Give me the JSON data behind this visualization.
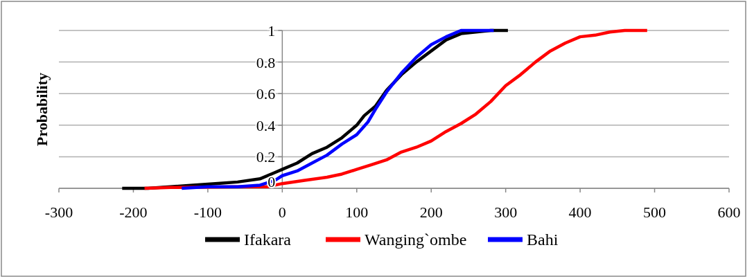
{
  "chart_data": {
    "type": "line",
    "ylabel": "Probability",
    "xlim": [
      -300,
      600
    ],
    "xticks": [
      -300,
      -200,
      -100,
      0,
      100,
      200,
      300,
      400,
      500,
      600
    ],
    "ylim": [
      0,
      1
    ],
    "yticks": [
      0,
      0.2,
      0.4,
      0.6,
      0.8,
      1
    ],
    "grid": "y",
    "legend": "bottom",
    "line_style": "solid",
    "series": [
      {
        "name": "Ifakara",
        "color": "#000000",
        "x": [
          -215,
          -180,
          -120,
          -90,
          -60,
          -30,
          -10,
          0,
          20,
          40,
          60,
          80,
          100,
          110,
          125,
          140,
          160,
          180,
          200,
          220,
          240,
          260,
          280,
          303
        ],
        "values": [
          0,
          0,
          0.02,
          0.03,
          0.04,
          0.06,
          0.1,
          0.12,
          0.16,
          0.22,
          0.26,
          0.32,
          0.4,
          0.46,
          0.52,
          0.62,
          0.72,
          0.8,
          0.87,
          0.94,
          0.98,
          0.99,
          1,
          1
        ]
      },
      {
        "name": "Wanging`ombe",
        "color": "#ff0000",
        "x": [
          -185,
          -150,
          -50,
          -20,
          0,
          30,
          60,
          80,
          100,
          120,
          140,
          160,
          180,
          200,
          220,
          240,
          260,
          280,
          300,
          320,
          340,
          360,
          380,
          400,
          420,
          440,
          460,
          490
        ],
        "values": [
          0,
          0.005,
          0.01,
          0.01,
          0.03,
          0.05,
          0.07,
          0.09,
          0.12,
          0.15,
          0.18,
          0.23,
          0.26,
          0.3,
          0.36,
          0.41,
          0.47,
          0.55,
          0.65,
          0.72,
          0.8,
          0.87,
          0.92,
          0.96,
          0.97,
          0.99,
          1,
          1
        ]
      },
      {
        "name": "Bahi",
        "color": "#0000ff",
        "x": [
          -135,
          -100,
          -60,
          -30,
          -10,
          0,
          20,
          40,
          60,
          80,
          100,
          115,
          125,
          140,
          160,
          180,
          200,
          220,
          240,
          284
        ],
        "values": [
          0,
          0.01,
          0.01,
          0.02,
          0.05,
          0.08,
          0.11,
          0.16,
          0.21,
          0.28,
          0.34,
          0.42,
          0.5,
          0.61,
          0.73,
          0.83,
          0.91,
          0.96,
          1,
          1
        ]
      }
    ]
  }
}
